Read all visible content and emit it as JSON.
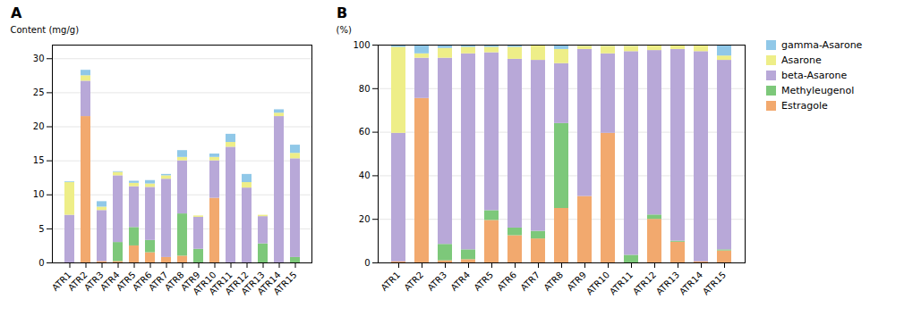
{
  "chart_data": [
    {
      "type": "bar",
      "stacked": true,
      "title": "A",
      "categories": [
        "ATR1",
        "ATR2",
        "ATR3",
        "ATR4",
        "ATR5",
        "ATR6",
        "ATR7",
        "ATR8",
        "ATR9",
        "ATR10",
        "ATR11",
        "ATR12",
        "ATR13",
        "ATR14",
        "ATR15"
      ],
      "series": [
        {
          "name": "Estragole",
          "color": "#F2A96E",
          "values": [
            0.0,
            21.5,
            0.2,
            0.2,
            2.5,
            1.5,
            0.8,
            1.0,
            0.0,
            9.5,
            0.0,
            0.0,
            0.0,
            0.0,
            0.0
          ]
        },
        {
          "name": "Methyleugenol",
          "color": "#7DC87A",
          "values": [
            0.0,
            0.0,
            0.0,
            2.8,
            2.7,
            1.8,
            0.0,
            6.2,
            2.0,
            0.0,
            0.0,
            0.0,
            2.8,
            0.0,
            0.8
          ]
        },
        {
          "name": "beta-Asarone",
          "color": "#B8A8D8",
          "values": [
            7.0,
            5.2,
            7.5,
            9.8,
            6.0,
            7.8,
            11.5,
            7.8,
            4.7,
            5.5,
            17.0,
            11.0,
            4.0,
            21.5,
            14.5
          ]
        },
        {
          "name": "Asarone",
          "color": "#EEEE88",
          "values": [
            4.8,
            0.8,
            0.5,
            0.5,
            0.5,
            0.5,
            0.5,
            0.5,
            0.2,
            0.5,
            0.7,
            0.8,
            0.2,
            0.5,
            0.8
          ]
        },
        {
          "name": "gamma-Asarone",
          "color": "#90C8E8",
          "values": [
            0.1,
            0.8,
            0.8,
            0.1,
            0.3,
            0.5,
            0.2,
            1.0,
            0.0,
            0.5,
            1.2,
            1.2,
            0.0,
            0.5,
            1.2
          ]
        }
      ],
      "ylabel": "Content (mg/g)",
      "ylim": [
        0,
        32
      ],
      "yticks": [
        0,
        5,
        10,
        15,
        20,
        25,
        30
      ],
      "grid": true
    },
    {
      "type": "bar",
      "stacked": true,
      "title": "B",
      "categories": [
        "ATR1",
        "ATR2",
        "ATR3",
        "ATR4",
        "ATR5",
        "ATR6",
        "ATR7",
        "ATR8",
        "ATR9",
        "ATR10",
        "ATR11",
        "ATR12",
        "ATR13",
        "ATR14",
        "ATR15"
      ],
      "series": [
        {
          "name": "Estragole",
          "color": "#F2A96E",
          "values": [
            0.5,
            75.5,
            1.0,
            1.5,
            19.5,
            12.5,
            11.0,
            25.0,
            30.5,
            59.5,
            0.0,
            20.0,
            9.5,
            0.5,
            5.5
          ]
        },
        {
          "name": "Methyleugenol",
          "color": "#7DC87A",
          "values": [
            0.0,
            0.0,
            7.5,
            4.5,
            4.5,
            3.5,
            3.5,
            39.0,
            0.0,
            0.0,
            3.5,
            2.0,
            0.5,
            0.0,
            0.5
          ]
        },
        {
          "name": "beta-Asarone",
          "color": "#B8A8D8",
          "values": [
            59.0,
            18.5,
            85.5,
            90.0,
            72.5,
            77.5,
            78.5,
            27.5,
            67.5,
            36.5,
            93.5,
            75.5,
            88.0,
            96.5,
            87.0
          ]
        },
        {
          "name": "Asarone",
          "color": "#EEEE88",
          "values": [
            39.5,
            2.0,
            4.5,
            3.0,
            2.5,
            5.5,
            7.0,
            6.5,
            1.5,
            3.5,
            2.5,
            2.5,
            2.0,
            3.0,
            2.0
          ]
        },
        {
          "name": "gamma-Asarone",
          "color": "#90C8E8",
          "values": [
            1.0,
            4.0,
            1.5,
            1.0,
            1.0,
            1.0,
            0.0,
            2.0,
            0.5,
            0.5,
            0.5,
            0.0,
            0.0,
            0.0,
            5.0
          ]
        }
      ],
      "ylabel": "(%)",
      "ylim": [
        0,
        100
      ],
      "yticks": [
        0,
        20,
        40,
        60,
        80,
        100
      ],
      "grid": true,
      "legend": "upper right"
    }
  ]
}
